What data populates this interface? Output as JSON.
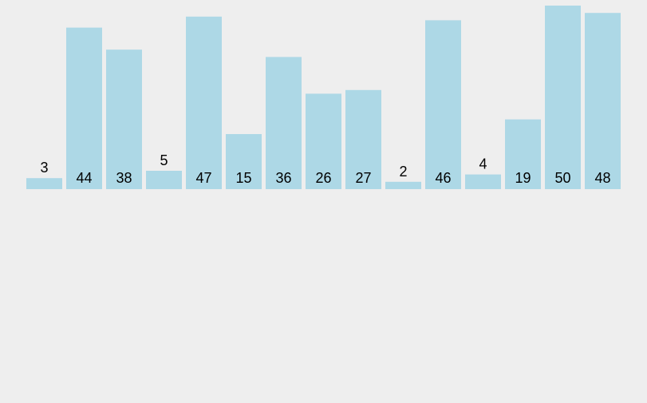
{
  "chart_data": {
    "type": "bar",
    "values": [
      3,
      44,
      38,
      5,
      47,
      15,
      36,
      26,
      27,
      2,
      46,
      4,
      19,
      50,
      48
    ],
    "data_labels": [
      "3",
      "44",
      "38",
      "5",
      "47",
      "15",
      "36",
      "26",
      "27",
      "2",
      "46",
      "4",
      "19",
      "50",
      "48"
    ],
    "ylim": [
      0,
      50
    ],
    "grid": false,
    "axes_visible": false,
    "bar_color": "#add8e6",
    "background_color": "#eeeeee",
    "label_color": "#000000"
  }
}
